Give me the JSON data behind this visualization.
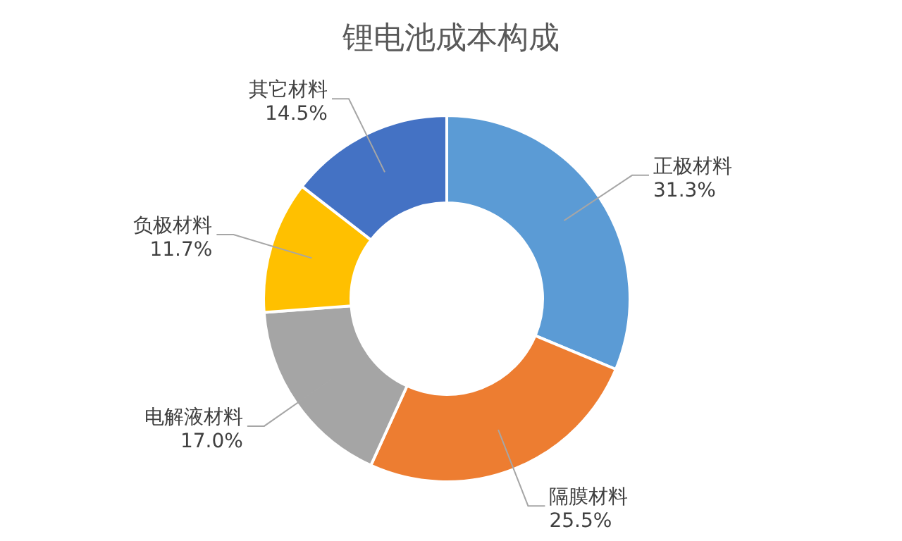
{
  "chart_data": {
    "type": "donut",
    "title": "锂电池成本构成",
    "categories": [
      "正极材料",
      "隔膜材料",
      "电解液材料",
      "负极材料",
      "其它材料"
    ],
    "values": [
      31.3,
      25.5,
      17.0,
      11.7,
      14.5
    ],
    "value_labels": [
      "31.3%",
      "25.5%",
      "17.0%",
      "11.7%",
      "14.5%"
    ],
    "colors": [
      "#5b9bd5",
      "#ed7d31",
      "#a5a5a5",
      "#ffc000",
      "#4472c4"
    ]
  }
}
